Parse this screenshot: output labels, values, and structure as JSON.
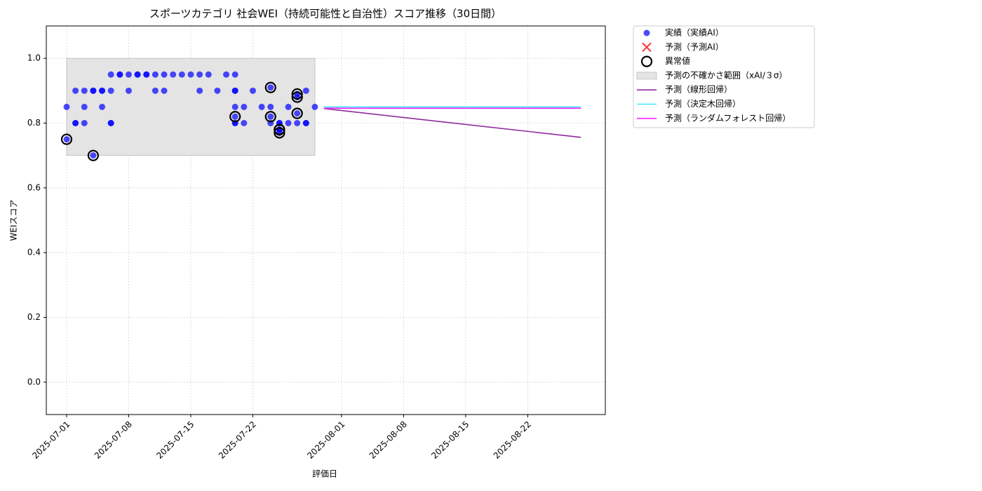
{
  "chart_data": {
    "type": "scatter",
    "title": "スポーツカテゴリ 社会WEI（持続可能性と自治性）スコア推移（30日間）",
    "x_label": "評価日",
    "y_label": "WEIスコア",
    "xlim": [
      "2025-06-28T17:00Z",
      "2025-08-30T18:00Z"
    ],
    "xticks": [
      "2025-07-01",
      "2025-07-08",
      "2025-07-15",
      "2025-07-22",
      "2025-08-01",
      "2025-08-08",
      "2025-08-15",
      "2025-08-22"
    ],
    "ylim": [
      -0.1,
      1.1
    ],
    "yticks": [
      {
        "value": 0,
        "label": "0.0"
      },
      0.2,
      0.4,
      0.6,
      0.8,
      {
        "value": 1,
        "label": "1.0"
      }
    ],
    "grid": true,
    "legend": "outside upper right",
    "series": [
      {
        "name": "実績（実績AI）",
        "type": "scatter",
        "marker": "o",
        "color": "#0000ff",
        "x": [
          "2025-07-01",
          "2025-07-01",
          "2025-07-02",
          "2025-07-02",
          "2025-07-02",
          "2025-07-03",
          "2025-07-03",
          "2025-07-03",
          "2025-07-04",
          "2025-07-04",
          "2025-07-04",
          "2025-07-05",
          "2025-07-05",
          "2025-07-05",
          "2025-07-06",
          "2025-07-06",
          "2025-07-06",
          "2025-07-06",
          "2025-07-07",
          "2025-07-07",
          "2025-07-08",
          "2025-07-08",
          "2025-07-09",
          "2025-07-09",
          "2025-07-10",
          "2025-07-10",
          "2025-07-11",
          "2025-07-11",
          "2025-07-12",
          "2025-07-12",
          "2025-07-13",
          "2025-07-14",
          "2025-07-15",
          "2025-07-16",
          "2025-07-16",
          "2025-07-17",
          "2025-07-18",
          "2025-07-19",
          "2025-07-20",
          "2025-07-20",
          "2025-07-20",
          "2025-07-20",
          "2025-07-20",
          "2025-07-20",
          "2025-07-20",
          "2025-07-21",
          "2025-07-21",
          "2025-07-22",
          "2025-07-23",
          "2025-07-24",
          "2025-07-24",
          "2025-07-24",
          "2025-07-24",
          "2025-07-25",
          "2025-07-25",
          "2025-07-25",
          "2025-07-25",
          "2025-07-25",
          "2025-07-26",
          "2025-07-26",
          "2025-07-27",
          "2025-07-27",
          "2025-07-27",
          "2025-07-27",
          "2025-07-28",
          "2025-07-28",
          "2025-07-28",
          "2025-07-29"
        ],
        "values": [
          0.85,
          0.75,
          0.8,
          0.8,
          0.9,
          0.8,
          0.85,
          0.9,
          0.7,
          0.9,
          0.9,
          0.9,
          0.85,
          0.9,
          0.8,
          0.8,
          0.9,
          0.95,
          0.95,
          0.95,
          0.9,
          0.95,
          0.95,
          0.95,
          0.95,
          0.95,
          0.95,
          0.9,
          0.95,
          0.9,
          0.95,
          0.95,
          0.95,
          0.9,
          0.95,
          0.95,
          0.9,
          0.95,
          0.95,
          0.9,
          0.85,
          0.82,
          0.8,
          0.8,
          0.9,
          0.8,
          0.85,
          0.9,
          0.85,
          0.8,
          0.82,
          0.85,
          0.91,
          0.78,
          0.77,
          0.8,
          0.8,
          0.78,
          0.8,
          0.85,
          0.8,
          0.89,
          0.88,
          0.83,
          0.8,
          0.8,
          0.9,
          0.85
        ]
      },
      {
        "name": "予測（予測AI）",
        "type": "scatter",
        "marker": "x",
        "color": "#ff3333",
        "x": [],
        "values": []
      },
      {
        "name": "異常値",
        "type": "scatter",
        "marker": "ring",
        "color": "#000000",
        "x": [
          "2025-07-01",
          "2025-07-04",
          "2025-07-20",
          "2025-07-24",
          "2025-07-24",
          "2025-07-25",
          "2025-07-25",
          "2025-07-25",
          "2025-07-27",
          "2025-07-27",
          "2025-07-27"
        ],
        "values": [
          0.75,
          0.7,
          0.82,
          0.82,
          0.91,
          0.78,
          0.77,
          0.78,
          0.89,
          0.88,
          0.83
        ]
      },
      {
        "name": "予測の不確かさ範囲（xAI/３σ）",
        "type": "band",
        "color": "#e4e4e4",
        "x": [
          "2025-07-01",
          "2025-07-29"
        ],
        "lower": 0.7,
        "upper": 1.0
      },
      {
        "name": "予測（線形回帰）",
        "type": "line",
        "color": "#8e2a9c",
        "x": [
          "2025-07-30",
          "2025-08-28"
        ],
        "values": [
          0.845,
          0.756
        ]
      },
      {
        "name": "予測（決定木回帰）",
        "type": "line",
        "color": "#40e8ff",
        "x": [
          "2025-07-30",
          "2025-08-28"
        ],
        "values": [
          0.85,
          0.85
        ]
      },
      {
        "name": "予測（ランダムフォレスト回帰）",
        "type": "line",
        "color": "#ff22ff",
        "x": [
          "2025-07-30",
          "2025-08-28"
        ],
        "values": [
          0.846,
          0.846
        ]
      }
    ]
  }
}
